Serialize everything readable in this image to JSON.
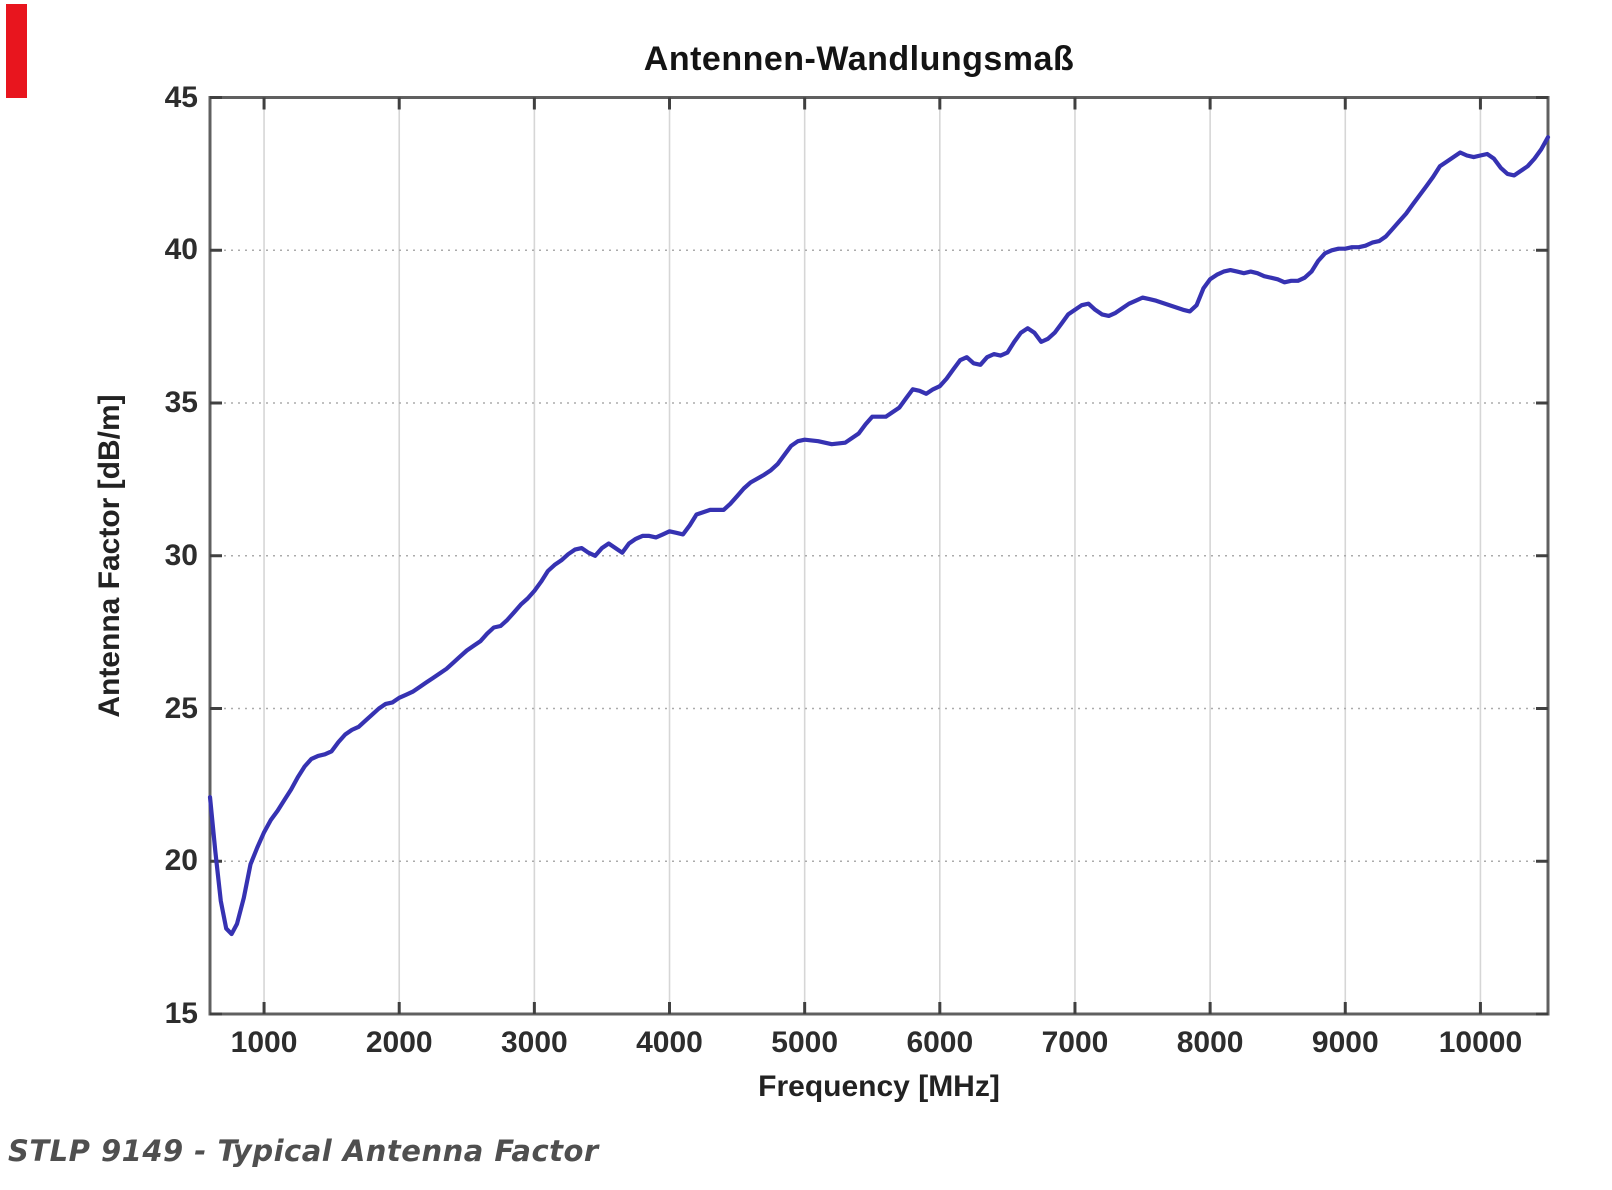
{
  "page": {
    "background": "#ffffff"
  },
  "red_artifact": {
    "color": "#e8151e"
  },
  "caption": "STLP 9149 - Typical Antenna Factor",
  "chart_data": {
    "type": "line",
    "title": "Antennen-Wandlungsmaß",
    "xlabel": "Frequency [MHz]",
    "ylabel": "Antenna Factor [dB/m]",
    "xlim": [
      600,
      10500
    ],
    "ylim": [
      15,
      45
    ],
    "x_ticks": [
      1000,
      2000,
      3000,
      4000,
      5000,
      6000,
      7000,
      8000,
      9000,
      10000
    ],
    "y_ticks": [
      15,
      20,
      25,
      30,
      35,
      40,
      45
    ],
    "grid": "on (dotted horizontal, light vertical)",
    "legend": "none",
    "line_color": "#3632b2",
    "axis_color": "#606060",
    "series": [
      {
        "name": "Typical Antenna Factor",
        "points": [
          [
            600,
            22.1
          ],
          [
            640,
            20.3
          ],
          [
            680,
            18.7
          ],
          [
            720,
            17.8
          ],
          [
            760,
            17.62
          ],
          [
            800,
            17.95
          ],
          [
            850,
            18.8
          ],
          [
            900,
            19.9
          ],
          [
            950,
            20.45
          ],
          [
            1000,
            20.95
          ],
          [
            1050,
            21.35
          ],
          [
            1100,
            21.65
          ],
          [
            1150,
            22.0
          ],
          [
            1200,
            22.35
          ],
          [
            1250,
            22.75
          ],
          [
            1300,
            23.1
          ],
          [
            1350,
            23.35
          ],
          [
            1400,
            23.45
          ],
          [
            1450,
            23.5
          ],
          [
            1500,
            23.6
          ],
          [
            1550,
            23.9
          ],
          [
            1600,
            24.15
          ],
          [
            1650,
            24.3
          ],
          [
            1700,
            24.4
          ],
          [
            1750,
            24.6
          ],
          [
            1800,
            24.8
          ],
          [
            1850,
            25.0
          ],
          [
            1900,
            25.15
          ],
          [
            1950,
            25.2
          ],
          [
            2000,
            25.35
          ],
          [
            2050,
            25.45
          ],
          [
            2100,
            25.55
          ],
          [
            2150,
            25.7
          ],
          [
            2200,
            25.85
          ],
          [
            2250,
            26.0
          ],
          [
            2300,
            26.15
          ],
          [
            2350,
            26.3
          ],
          [
            2400,
            26.5
          ],
          [
            2450,
            26.7
          ],
          [
            2500,
            26.9
          ],
          [
            2550,
            27.05
          ],
          [
            2600,
            27.2
          ],
          [
            2650,
            27.45
          ],
          [
            2700,
            27.65
          ],
          [
            2750,
            27.7
          ],
          [
            2800,
            27.9
          ],
          [
            2850,
            28.15
          ],
          [
            2900,
            28.4
          ],
          [
            2950,
            28.6
          ],
          [
            3000,
            28.85
          ],
          [
            3050,
            29.15
          ],
          [
            3100,
            29.5
          ],
          [
            3150,
            29.7
          ],
          [
            3200,
            29.85
          ],
          [
            3250,
            30.05
          ],
          [
            3300,
            30.2
          ],
          [
            3350,
            30.25
          ],
          [
            3400,
            30.1
          ],
          [
            3450,
            30.0
          ],
          [
            3500,
            30.25
          ],
          [
            3550,
            30.4
          ],
          [
            3600,
            30.25
          ],
          [
            3650,
            30.1
          ],
          [
            3700,
            30.4
          ],
          [
            3750,
            30.55
          ],
          [
            3800,
            30.65
          ],
          [
            3850,
            30.65
          ],
          [
            3900,
            30.6
          ],
          [
            3950,
            30.7
          ],
          [
            4000,
            30.8
          ],
          [
            4050,
            30.75
          ],
          [
            4100,
            30.7
          ],
          [
            4150,
            31.0
          ],
          [
            4200,
            31.35
          ],
          [
            4300,
            31.5
          ],
          [
            4400,
            31.5
          ],
          [
            4450,
            31.7
          ],
          [
            4500,
            31.95
          ],
          [
            4550,
            32.2
          ],
          [
            4600,
            32.4
          ],
          [
            4700,
            32.65
          ],
          [
            4750,
            32.8
          ],
          [
            4800,
            33.0
          ],
          [
            4850,
            33.3
          ],
          [
            4900,
            33.6
          ],
          [
            4950,
            33.75
          ],
          [
            5000,
            33.8
          ],
          [
            5100,
            33.75
          ],
          [
            5200,
            33.65
          ],
          [
            5300,
            33.7
          ],
          [
            5400,
            34.0
          ],
          [
            5450,
            34.3
          ],
          [
            5500,
            34.55
          ],
          [
            5600,
            34.55
          ],
          [
            5700,
            34.85
          ],
          [
            5750,
            35.15
          ],
          [
            5800,
            35.45
          ],
          [
            5850,
            35.4
          ],
          [
            5900,
            35.3
          ],
          [
            5950,
            35.45
          ],
          [
            6000,
            35.55
          ],
          [
            6050,
            35.8
          ],
          [
            6100,
            36.1
          ],
          [
            6150,
            36.4
          ],
          [
            6200,
            36.5
          ],
          [
            6250,
            36.3
          ],
          [
            6300,
            36.25
          ],
          [
            6350,
            36.5
          ],
          [
            6400,
            36.6
          ],
          [
            6450,
            36.55
          ],
          [
            6500,
            36.65
          ],
          [
            6550,
            37.0
          ],
          [
            6600,
            37.3
          ],
          [
            6650,
            37.45
          ],
          [
            6700,
            37.3
          ],
          [
            6750,
            37.0
          ],
          [
            6800,
            37.1
          ],
          [
            6850,
            37.3
          ],
          [
            6900,
            37.6
          ],
          [
            6950,
            37.9
          ],
          [
            7000,
            38.05
          ],
          [
            7050,
            38.2
          ],
          [
            7100,
            38.25
          ],
          [
            7150,
            38.05
          ],
          [
            7200,
            37.9
          ],
          [
            7250,
            37.85
          ],
          [
            7300,
            37.95
          ],
          [
            7350,
            38.1
          ],
          [
            7400,
            38.25
          ],
          [
            7450,
            38.35
          ],
          [
            7500,
            38.45
          ],
          [
            7550,
            38.4
          ],
          [
            7600,
            38.35
          ],
          [
            7700,
            38.2
          ],
          [
            7800,
            38.05
          ],
          [
            7850,
            38.0
          ],
          [
            7900,
            38.2
          ],
          [
            7950,
            38.75
          ],
          [
            8000,
            39.05
          ],
          [
            8050,
            39.2
          ],
          [
            8100,
            39.3
          ],
          [
            8150,
            39.35
          ],
          [
            8200,
            39.3
          ],
          [
            8250,
            39.25
          ],
          [
            8300,
            39.3
          ],
          [
            8350,
            39.25
          ],
          [
            8400,
            39.15
          ],
          [
            8450,
            39.1
          ],
          [
            8500,
            39.05
          ],
          [
            8550,
            38.95
          ],
          [
            8600,
            39.0
          ],
          [
            8650,
            39.0
          ],
          [
            8700,
            39.1
          ],
          [
            8750,
            39.3
          ],
          [
            8800,
            39.65
          ],
          [
            8850,
            39.9
          ],
          [
            8900,
            40.0
          ],
          [
            8950,
            40.05
          ],
          [
            9000,
            40.05
          ],
          [
            9050,
            40.1
          ],
          [
            9100,
            40.1
          ],
          [
            9150,
            40.15
          ],
          [
            9200,
            40.25
          ],
          [
            9250,
            40.3
          ],
          [
            9300,
            40.45
          ],
          [
            9350,
            40.7
          ],
          [
            9400,
            40.95
          ],
          [
            9450,
            41.2
          ],
          [
            9500,
            41.5
          ],
          [
            9550,
            41.8
          ],
          [
            9600,
            42.1
          ],
          [
            9650,
            42.4
          ],
          [
            9700,
            42.75
          ],
          [
            9750,
            42.9
          ],
          [
            9800,
            43.05
          ],
          [
            9850,
            43.2
          ],
          [
            9900,
            43.1
          ],
          [
            9950,
            43.05
          ],
          [
            10000,
            43.1
          ],
          [
            10050,
            43.15
          ],
          [
            10100,
            43.0
          ],
          [
            10150,
            42.7
          ],
          [
            10200,
            42.5
          ],
          [
            10250,
            42.45
          ],
          [
            10300,
            42.6
          ],
          [
            10350,
            42.75
          ],
          [
            10400,
            43.0
          ],
          [
            10450,
            43.3
          ],
          [
            10500,
            43.7
          ]
        ]
      }
    ]
  }
}
